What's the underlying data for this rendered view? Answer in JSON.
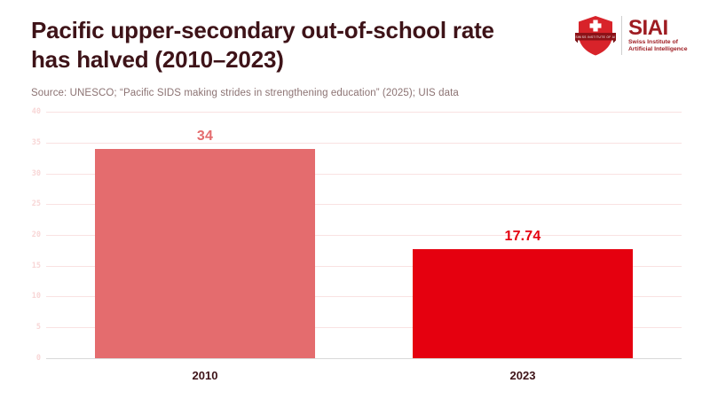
{
  "header": {
    "title": "Pacific upper-secondary out-of-school rate has halved (2010–2023)",
    "title_line1": "Pacific upper-secondary out-of-school rate",
    "title_line2": "has halved (2010–2023)",
    "source": "Source: UNESCO; “Pacific SIDS making strides in strengthening education” (2025); UIS data"
  },
  "logo": {
    "name": "SIAI",
    "subtitle_line1": "Swiss Institute of",
    "subtitle_line2": "Artificial Intelligence",
    "banner_micro_text": "SWISS INSTITUTE OF AI",
    "shield_color": "#d8232a",
    "banner_color": "#8c1217",
    "cross_color": "#ffffff",
    "text_color": "#9e1c22",
    "divider_color": "#cfcfcf"
  },
  "chart_data": {
    "type": "bar",
    "title": "Pacific upper-secondary out-of-school rate has halved (2010–2023)",
    "categories": [
      "2010",
      "2023"
    ],
    "values": [
      34,
      17.74
    ],
    "value_labels": [
      "34",
      "17.74"
    ],
    "bar_colors": [
      "#e46c6e",
      "#e5000f"
    ],
    "label_colors": [
      "#e46c6e",
      "#e5000f"
    ],
    "y_ticks": [
      0,
      5,
      10,
      15,
      20,
      25,
      30,
      35,
      40
    ],
    "y_tick_labels": [
      "0",
      "5",
      "10",
      "15",
      "20",
      "25",
      "30",
      "35",
      "40"
    ],
    "ylim": [
      0,
      40
    ],
    "xlabel": "",
    "ylabel": "",
    "grid": true,
    "legend": false
  },
  "colors": {
    "title": "#3e1318",
    "source": "#8c7373",
    "gridline": "#f9e2e2",
    "baseline": "#d9d9d9",
    "y_tick_label": "#f8d6d6",
    "x_tick_label": "#3e1318",
    "background": "#ffffff"
  }
}
